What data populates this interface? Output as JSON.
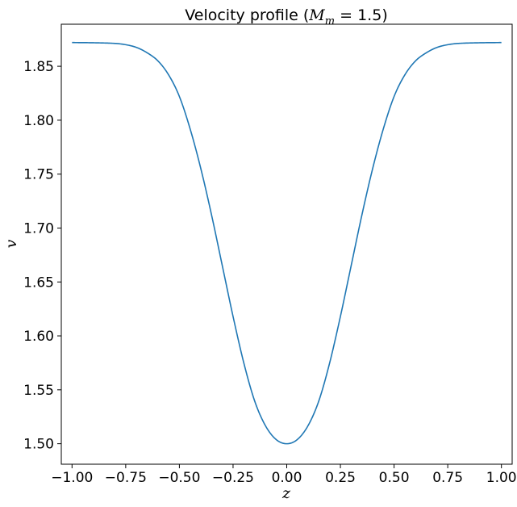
{
  "chart_data": {
    "type": "line",
    "title": "Velocity profile (",
    "title_math": {
      "symbol": "M",
      "subscript": "m",
      "equals": " = 1.5",
      "close": ")"
    },
    "xlabel": "z",
    "ylabel": "v",
    "xlim": [
      -1.05,
      1.05
    ],
    "ylim": [
      1.481,
      1.889
    ],
    "xticks": [
      -1.0,
      -0.75,
      -0.5,
      -0.25,
      0.0,
      0.25,
      0.5,
      0.75,
      1.0
    ],
    "xtick_labels": [
      "−1.00",
      "−0.75",
      "−0.50",
      "−0.25",
      "0.00",
      "0.25",
      "0.50",
      "0.75",
      "1.00"
    ],
    "yticks": [
      1.5,
      1.55,
      1.6,
      1.65,
      1.7,
      1.75,
      1.8,
      1.85
    ],
    "ytick_labels": [
      "1.50",
      "1.55",
      "1.60",
      "1.65",
      "1.70",
      "1.75",
      "1.80",
      "1.85"
    ],
    "grid": false,
    "legend": "none",
    "series": [
      {
        "color": "#1f77b4",
        "x": [
          -1.0,
          -0.9,
          -0.8,
          -0.75,
          -0.7,
          -0.65,
          -0.6,
          -0.55,
          -0.5,
          -0.45,
          -0.4,
          -0.35,
          -0.3,
          -0.25,
          -0.2,
          -0.15,
          -0.1,
          -0.05,
          0.0,
          0.05,
          0.1,
          0.15,
          0.2,
          0.25,
          0.3,
          0.35,
          0.4,
          0.45,
          0.5,
          0.55,
          0.6,
          0.65,
          0.7,
          0.75,
          0.8,
          0.9,
          1.0
        ],
        "y": [
          1.872,
          1.8718,
          1.8712,
          1.87,
          1.8675,
          1.8625,
          1.855,
          1.842,
          1.822,
          1.792,
          1.755,
          1.712,
          1.665,
          1.618,
          1.575,
          1.54,
          1.517,
          1.504,
          1.5,
          1.504,
          1.517,
          1.54,
          1.575,
          1.618,
          1.665,
          1.712,
          1.755,
          1.792,
          1.822,
          1.842,
          1.855,
          1.8625,
          1.8675,
          1.87,
          1.8712,
          1.8718,
          1.872
        ]
      }
    ]
  }
}
